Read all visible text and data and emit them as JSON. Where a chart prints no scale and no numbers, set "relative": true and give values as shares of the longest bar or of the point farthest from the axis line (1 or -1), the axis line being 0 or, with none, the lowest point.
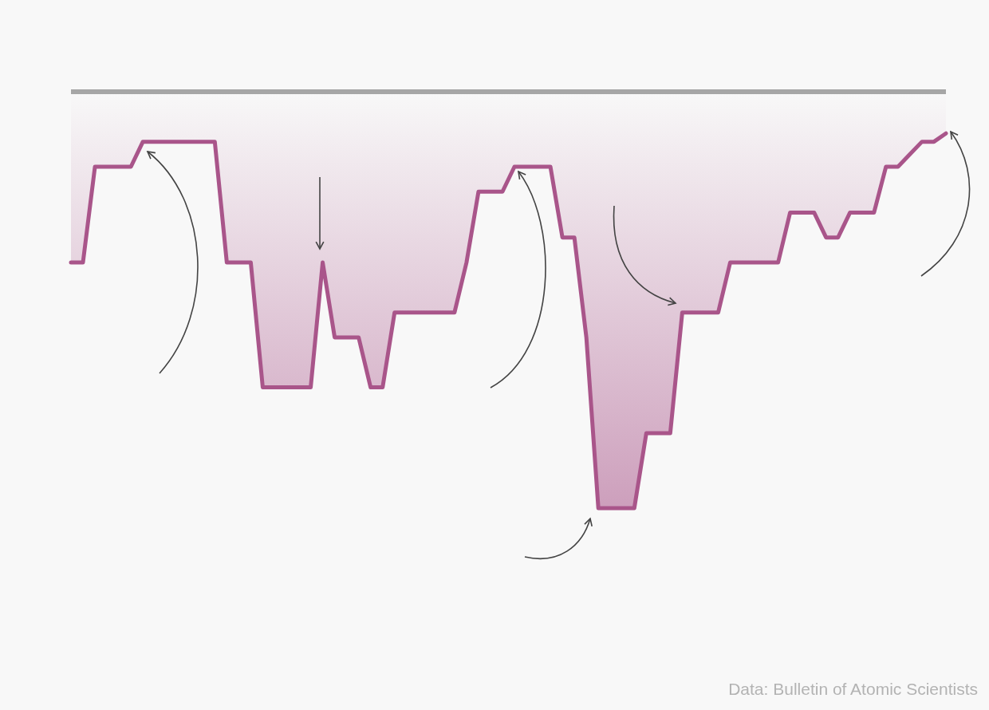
{
  "chart_data": {
    "type": "area",
    "relative": true,
    "categories": [
      null,
      null,
      null,
      null,
      null,
      null,
      null,
      null,
      null,
      null,
      null,
      null,
      null,
      null,
      null,
      null,
      null,
      null,
      null,
      null,
      null,
      null,
      null,
      null,
      null,
      null,
      null,
      null,
      null,
      null,
      null,
      null,
      null,
      null,
      null,
      null,
      null,
      null,
      null,
      null,
      null,
      null,
      null,
      null,
      null,
      null,
      null,
      null,
      null,
      null,
      null,
      null,
      null,
      null,
      null,
      null,
      null,
      null,
      null,
      null,
      null,
      null,
      null,
      null,
      null,
      null,
      null,
      null,
      null,
      null,
      null,
      null,
      null,
      null
    ],
    "series": [
      {
        "color": "#a9558a",
        "values": [
          -0.41,
          -0.41,
          -0.18,
          -0.18,
          -0.18,
          -0.18,
          -0.12,
          -0.12,
          -0.12,
          -0.12,
          -0.12,
          -0.12,
          -0.12,
          -0.41,
          -0.41,
          -0.41,
          -0.71,
          -0.71,
          -0.71,
          -0.71,
          -0.71,
          -0.41,
          -0.59,
          -0.59,
          -0.59,
          -0.71,
          -0.71,
          -0.53,
          -0.53,
          -0.53,
          -0.53,
          -0.53,
          -0.53,
          -0.41,
          -0.24,
          -0.24,
          -0.24,
          -0.18,
          -0.18,
          -0.18,
          -0.18,
          -0.35,
          -0.35,
          -0.59,
          -1,
          -1,
          -1,
          -1,
          -0.82,
          -0.82,
          -0.82,
          -0.53,
          -0.53,
          -0.53,
          -0.53,
          -0.41,
          -0.41,
          -0.41,
          -0.41,
          -0.41,
          -0.29,
          -0.29,
          -0.29,
          -0.35,
          -0.35,
          -0.29,
          -0.29,
          -0.29,
          -0.18,
          -0.18,
          -0.15,
          -0.12,
          -0.12,
          -0.1
        ]
      }
    ],
    "ref_lines": [
      {
        "axis": "y",
        "value": 0,
        "color": "#a6a6a6"
      }
    ],
    "annotations": [
      "Data: Bulletin of Atomic Scientists"
    ],
    "grid": false
  }
}
